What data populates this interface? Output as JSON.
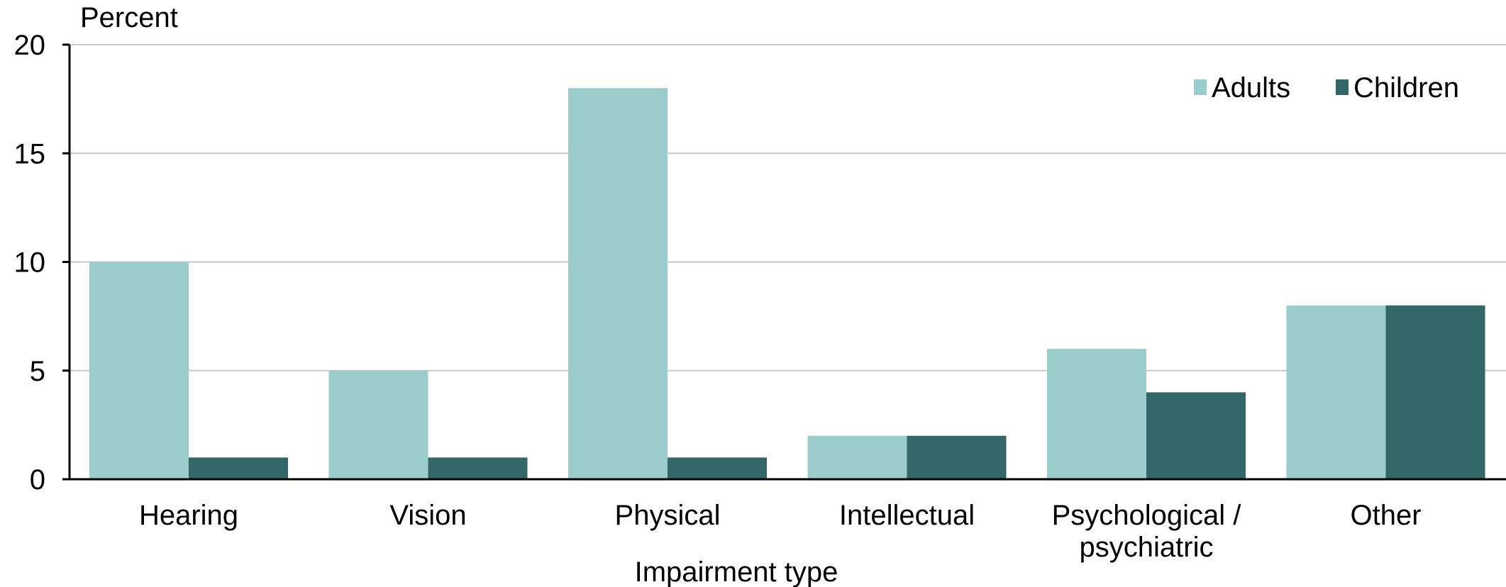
{
  "chart_data": {
    "type": "bar",
    "title": "",
    "ylabel": "Percent",
    "xlabel": "Impairment type",
    "ylim": [
      0,
      20
    ],
    "yticks": [
      0,
      5,
      10,
      15,
      20
    ],
    "grid": true,
    "legend_position": "top-right",
    "categories": [
      [
        "Hearing"
      ],
      [
        "Vision"
      ],
      [
        "Physical"
      ],
      [
        "Intellectual"
      ],
      [
        "Psychological /",
        "psychiatric"
      ],
      [
        "Other"
      ]
    ],
    "series": [
      {
        "name": "Adults",
        "color": "#9ACCCC",
        "values": [
          10,
          5,
          18,
          2,
          6,
          8
        ]
      },
      {
        "name": "Children",
        "color": "#336666",
        "values": [
          1,
          1,
          1,
          2,
          4,
          8
        ]
      }
    ]
  }
}
